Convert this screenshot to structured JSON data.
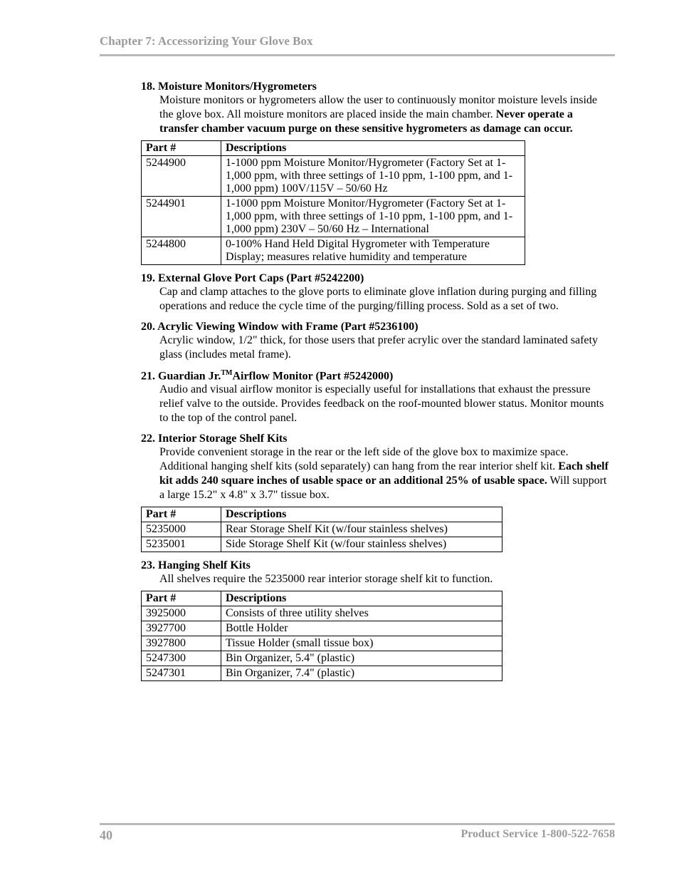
{
  "header": {
    "title": "Chapter 7: Accessorizing Your Glove Box"
  },
  "items": [
    {
      "num": "18.",
      "title": "Moisture Monitors/Hygrometers",
      "body_parts": [
        {
          "text": "Moisture monitors or hygrometers allow the user to continuously monitor moisture levels inside the glove box.  All moisture monitors are placed inside the main chamber.  ",
          "bold": false
        },
        {
          "text": "Never operate a transfer chamber vacuum purge on these sensitive hygrometers as damage can occur.",
          "bold": true
        }
      ],
      "table": {
        "class": "t1",
        "headers": [
          "Part #",
          "Descriptions"
        ],
        "rows": [
          [
            "5244900",
            "1-1000 ppm Moisture Monitor/Hygrometer (Factory Set at 1-1,000 ppm, with three settings of 1-10 ppm, 1-100 ppm, and 1-1,000 ppm) 100V/115V – 50/60 Hz"
          ],
          [
            "5244901",
            "1-1000 ppm Moisture Monitor/Hygrometer (Factory Set at 1-1,000 ppm, with three settings of 1-10 ppm, 1-100 ppm, and 1-1,000 ppm) 230V – 50/60 Hz – International"
          ],
          [
            "5244800",
            "0-100% Hand Held Digital Hygrometer with Temperature Display; measures relative humidity and temperature"
          ]
        ]
      }
    },
    {
      "num": "19.",
      "title": "External Glove Port Caps (Part #5242200)",
      "body_parts": [
        {
          "text": "Cap and clamp attaches to the glove ports to eliminate glove inflation during purging and filling operations and reduce the cycle time of the purging/filling process.  Sold as a set of two.",
          "bold": false
        }
      ]
    },
    {
      "num": "20.",
      "title": "Acrylic Viewing Window with Frame (Part #5236100)",
      "body_parts": [
        {
          "text": "Acrylic window, 1/2\" thick, for those users that prefer acrylic over the standard laminated safety glass (includes metal frame).",
          "bold": false
        }
      ]
    },
    {
      "num": "21.",
      "title_parts": [
        {
          "text": "Guardian Jr."
        },
        {
          "text": "TM",
          "sup": true
        },
        {
          "text": "Airflow Monitor (Part #5242000)"
        }
      ],
      "body_parts": [
        {
          "text": "Audio and visual airflow monitor is especially useful for installations that exhaust the pressure relief valve to the outside.  Provides feedback on the roof-mounted blower status.  Monitor mounts to the top of the control panel.",
          "bold": false
        }
      ]
    },
    {
      "num": "22.",
      "title": "Interior Storage Shelf Kits",
      "body_parts": [
        {
          "text": "Provide convenient storage in the rear or the left side of the glove box to maximize space.  Additional hanging shelf kits (sold separately) can hang from the rear interior shelf kit.  ",
          "bold": false
        },
        {
          "text": "Each shelf kit adds 240 square inches of usable space or an additional 25% of usable space.",
          "bold": true
        },
        {
          "text": "  Will support a large 15.2\" x 4.8\" x 3.7\" tissue box.",
          "bold": false
        }
      ],
      "table": {
        "class": "t2",
        "headers": [
          "Part #",
          "Descriptions"
        ],
        "rows": [
          [
            "5235000",
            "Rear Storage Shelf Kit (w/four stainless shelves)"
          ],
          [
            "5235001",
            "Side Storage Shelf Kit (w/four stainless shelves)"
          ]
        ]
      }
    },
    {
      "num": "23.",
      "title": "Hanging Shelf Kits",
      "body_parts": [
        {
          "text": "All shelves require the 5235000 rear interior storage shelf kit to function.",
          "bold": false
        }
      ],
      "table": {
        "class": "t3",
        "headers": [
          "Part #",
          "Descriptions"
        ],
        "rows": [
          [
            "3925000",
            "Consists of three utility shelves"
          ],
          [
            "3927700",
            "Bottle Holder"
          ],
          [
            "3927800",
            "Tissue Holder (small tissue box)"
          ],
          [
            "5247300",
            "Bin Organizer, 5.4\" (plastic)"
          ],
          [
            "5247301",
            "Bin Organizer, 7.4\" (plastic)"
          ]
        ]
      }
    }
  ],
  "footer": {
    "page": "40",
    "service": "Product Service 1-800-522-7658"
  }
}
